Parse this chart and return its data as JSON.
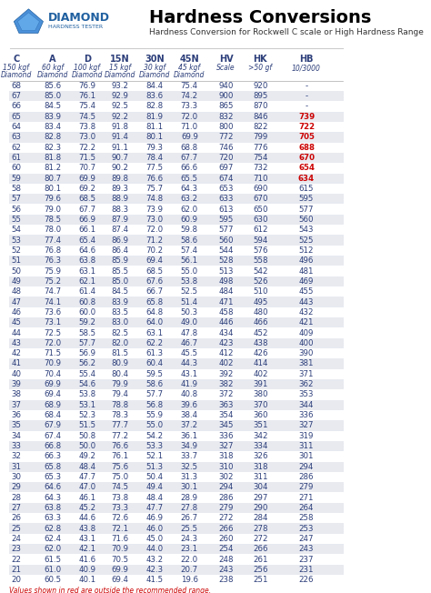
{
  "title": "Hardness Conversions",
  "subtitle": "Hardness Conversion for Rockwell C scale or High Hardness Range",
  "logo_text": "DIAMOND",
  "logo_subtext": "HARDNESS TESTER",
  "columns": [
    "C",
    "A",
    "D",
    "15N",
    "30N",
    "45N",
    "HV",
    "HK",
    "HB"
  ],
  "col_sub1": [
    "150 kgf",
    "60 kgf",
    "100 kgf",
    "15 kgf",
    "30 kgf",
    "45 kgf",
    "Scale",
    ">50 gf",
    "10/3000"
  ],
  "col_sub2": [
    "Diamond",
    "Diamond",
    "Diamond",
    "Diamond",
    "Diamond",
    "Diamond",
    "",
    "",
    ""
  ],
  "footer": "Values shown in red are outside the recommended range.",
  "rows": [
    [
      68,
      85.6,
      76.9,
      93.2,
      84.4,
      75.4,
      940,
      920,
      "-"
    ],
    [
      67,
      85.0,
      76.1,
      92.9,
      83.6,
      74.2,
      900,
      895,
      "-"
    ],
    [
      66,
      84.5,
      75.4,
      92.5,
      82.8,
      73.3,
      865,
      870,
      "-"
    ],
    [
      65,
      83.9,
      74.5,
      92.2,
      81.9,
      72.0,
      832,
      846,
      "739"
    ],
    [
      64,
      83.4,
      73.8,
      91.8,
      81.1,
      71.0,
      800,
      822,
      "722"
    ],
    [
      63,
      82.8,
      73.0,
      91.4,
      80.1,
      69.9,
      772,
      799,
      "705"
    ],
    [
      62,
      82.3,
      72.2,
      91.1,
      79.3,
      68.8,
      746,
      776,
      "688"
    ],
    [
      61,
      81.8,
      71.5,
      90.7,
      78.4,
      67.7,
      720,
      754,
      "670"
    ],
    [
      60,
      81.2,
      70.7,
      90.2,
      77.5,
      66.6,
      697,
      732,
      "654"
    ],
    [
      59,
      80.7,
      69.9,
      89.8,
      76.6,
      65.5,
      674,
      710,
      "634"
    ],
    [
      58,
      80.1,
      69.2,
      89.3,
      75.7,
      64.3,
      653,
      690,
      615
    ],
    [
      57,
      79.6,
      68.5,
      88.9,
      74.8,
      63.2,
      633,
      670,
      595
    ],
    [
      56,
      79.0,
      67.7,
      88.3,
      73.9,
      62.0,
      613,
      650,
      577
    ],
    [
      55,
      78.5,
      66.9,
      87.9,
      73.0,
      60.9,
      595,
      630,
      560
    ],
    [
      54,
      78.0,
      66.1,
      87.4,
      72.0,
      59.8,
      577,
      612,
      543
    ],
    [
      53,
      77.4,
      65.4,
      86.9,
      71.2,
      58.6,
      560,
      594,
      525
    ],
    [
      52,
      76.8,
      64.6,
      86.4,
      70.2,
      57.4,
      544,
      576,
      512
    ],
    [
      51,
      76.3,
      63.8,
      85.9,
      69.4,
      56.1,
      528,
      558,
      496
    ],
    [
      50,
      75.9,
      63.1,
      85.5,
      68.5,
      55.0,
      513,
      542,
      481
    ],
    [
      49,
      75.2,
      62.1,
      85.0,
      67.6,
      53.8,
      498,
      526,
      469
    ],
    [
      48,
      74.7,
      61.4,
      84.5,
      66.7,
      52.5,
      484,
      510,
      455
    ],
    [
      47,
      74.1,
      60.8,
      83.9,
      65.8,
      51.4,
      471,
      495,
      443
    ],
    [
      46,
      73.6,
      60.0,
      83.5,
      64.8,
      50.3,
      458,
      480,
      432
    ],
    [
      45,
      73.1,
      59.2,
      83.0,
      64.0,
      49.0,
      446,
      466,
      421
    ],
    [
      44,
      72.5,
      58.5,
      82.5,
      63.1,
      47.8,
      434,
      452,
      409
    ],
    [
      43,
      72.0,
      57.7,
      82.0,
      62.2,
      46.7,
      423,
      438,
      400
    ],
    [
      42,
      71.5,
      56.9,
      81.5,
      61.3,
      45.5,
      412,
      426,
      390
    ],
    [
      41,
      70.9,
      56.2,
      80.9,
      60.4,
      44.3,
      402,
      414,
      381
    ],
    [
      40,
      70.4,
      55.4,
      80.4,
      59.5,
      43.1,
      392,
      402,
      371
    ],
    [
      39,
      69.9,
      54.6,
      79.9,
      58.6,
      41.9,
      382,
      391,
      362
    ],
    [
      38,
      69.4,
      53.8,
      79.4,
      57.7,
      40.8,
      372,
      380,
      353
    ],
    [
      37,
      68.9,
      53.1,
      78.8,
      56.8,
      39.6,
      363,
      370,
      344
    ],
    [
      36,
      68.4,
      52.3,
      78.3,
      55.9,
      38.4,
      354,
      360,
      336
    ],
    [
      35,
      67.9,
      51.5,
      77.7,
      55.0,
      37.2,
      345,
      351,
      327
    ],
    [
      34,
      67.4,
      50.8,
      77.2,
      54.2,
      36.1,
      336,
      342,
      319
    ],
    [
      33,
      66.8,
      50.0,
      76.6,
      53.3,
      34.9,
      327,
      334,
      311
    ],
    [
      32,
      66.3,
      49.2,
      76.1,
      52.1,
      33.7,
      318,
      326,
      301
    ],
    [
      31,
      65.8,
      48.4,
      75.6,
      51.3,
      32.5,
      310,
      318,
      294
    ],
    [
      30,
      65.3,
      47.7,
      75.0,
      50.4,
      31.3,
      302,
      311,
      286
    ],
    [
      29,
      64.6,
      47.0,
      74.5,
      49.4,
      30.1,
      294,
      304,
      279
    ],
    [
      28,
      64.3,
      46.1,
      73.8,
      48.4,
      28.9,
      286,
      297,
      271
    ],
    [
      27,
      63.8,
      45.2,
      73.3,
      47.7,
      27.8,
      279,
      290,
      264
    ],
    [
      26,
      63.3,
      44.6,
      72.6,
      46.9,
      26.7,
      272,
      284,
      258
    ],
    [
      25,
      62.8,
      43.8,
      72.1,
      46.0,
      25.5,
      266,
      278,
      253
    ],
    [
      24,
      62.4,
      43.1,
      71.6,
      45.0,
      24.3,
      260,
      272,
      247
    ],
    [
      23,
      62.0,
      42.1,
      70.9,
      44.0,
      23.1,
      254,
      266,
      243
    ],
    [
      22,
      61.5,
      41.6,
      70.5,
      43.2,
      22.0,
      248,
      261,
      237
    ],
    [
      21,
      61.0,
      40.9,
      69.9,
      42.3,
      20.7,
      243,
      256,
      231
    ],
    [
      20,
      60.5,
      40.1,
      69.4,
      41.5,
      19.6,
      238,
      251,
      226
    ]
  ],
  "red_rows": [
    65,
    64,
    63,
    62,
    61,
    60,
    59
  ],
  "alt_row_color": "#e8eaf0",
  "normal_row_color": "#ffffff",
  "header_color": "#ffffff",
  "red_color": "#cc0000",
  "text_color": "#2c3e7a",
  "header_text_color": "#2c3e7a"
}
